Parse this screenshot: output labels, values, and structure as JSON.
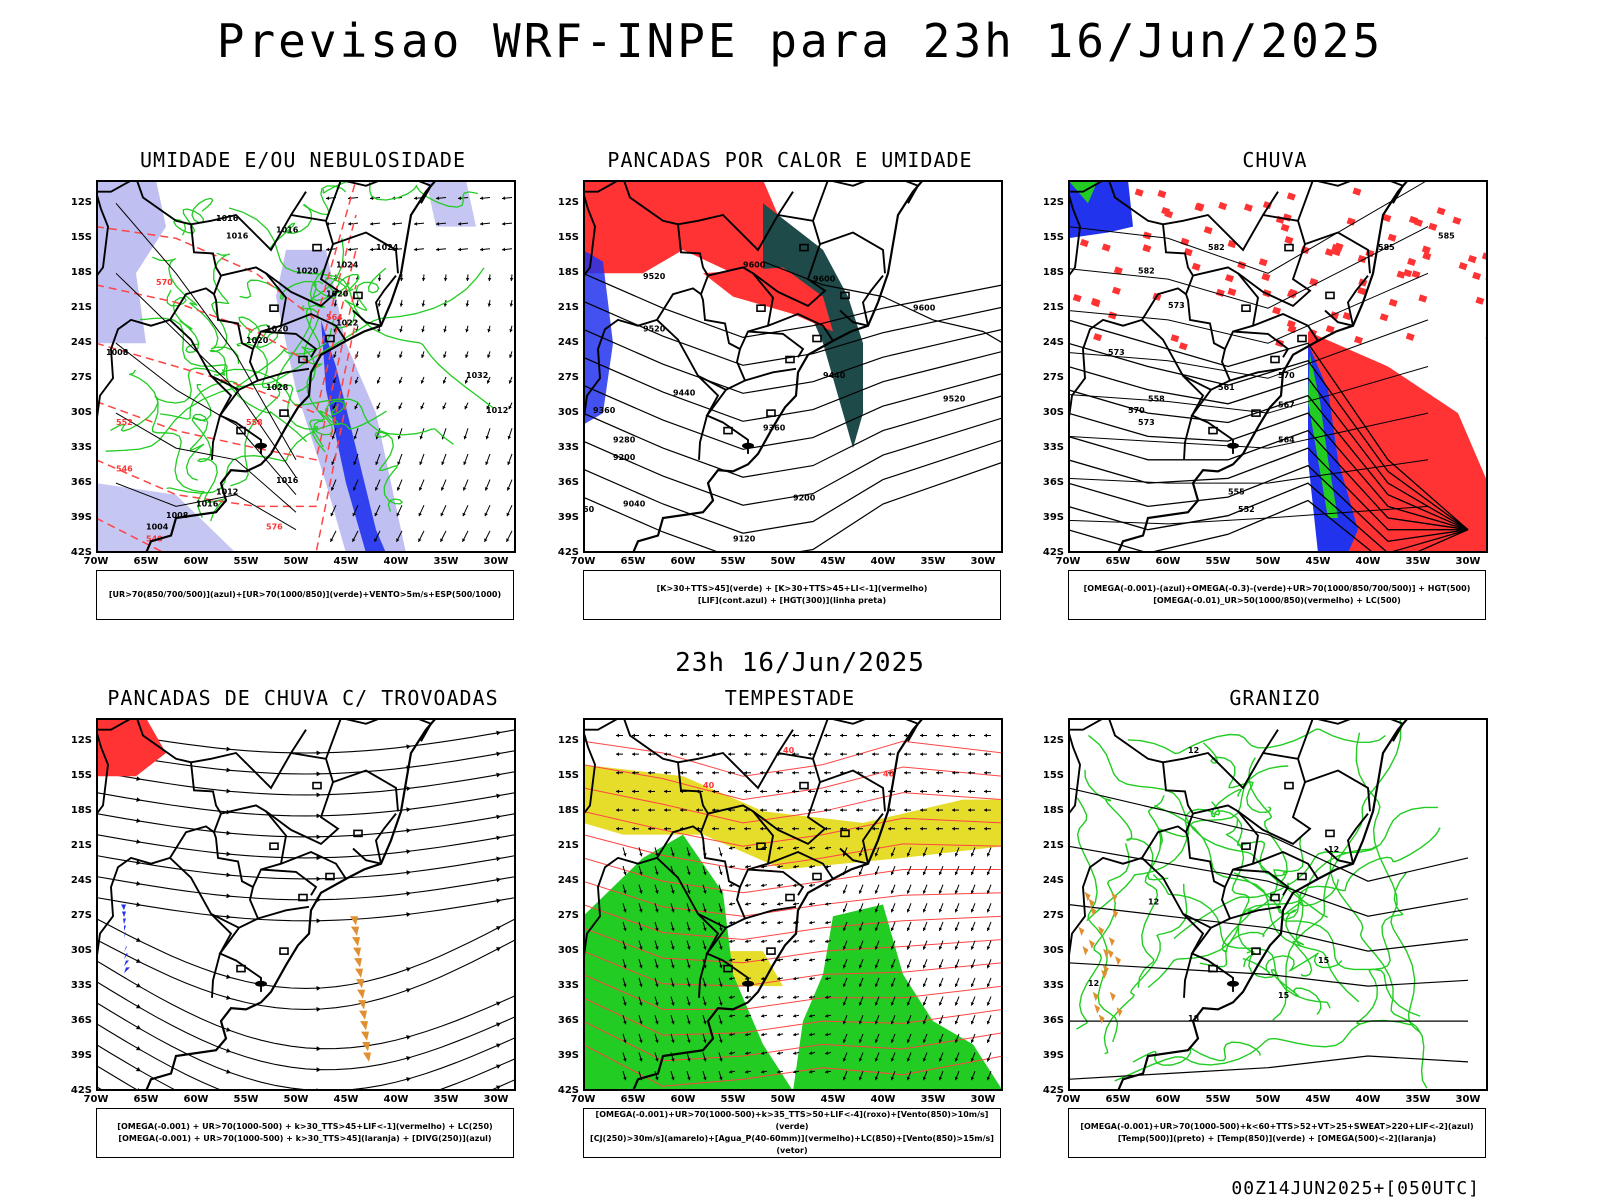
{
  "title": "Previsao WRF-INPE  para 23h 16/Jun/2025",
  "mid_time": "23h 16/Jun/2025",
  "footer": "00Z14JUN2025+[050UTC]",
  "axis": {
    "lat": [
      "12S",
      "15S",
      "18S",
      "21S",
      "24S",
      "27S",
      "30S",
      "33S",
      "36S",
      "39S",
      "42S"
    ],
    "lon": [
      "70W",
      "65W",
      "60W",
      "55W",
      "50W",
      "45W",
      "40W",
      "35W",
      "30W"
    ]
  },
  "colors": {
    "blue": "#2233ee",
    "lightblue": "#b8b8f0",
    "green": "#22cc22",
    "red": "#ff3333",
    "darkteal": "#1f4a4a",
    "yellow": "#e6dc2a",
    "orange": "#e09030"
  },
  "panels": [
    {
      "title": "UMIDADE E/OU NEBULOSIDADE",
      "legend": [
        "[UR>70(850/700/500)](azul)+[UR>70(1000/850)](verde)+VENTO>5m/s+ESP(500/1000)"
      ],
      "labels": [
        "1016",
        "1016",
        "1016",
        "1020",
        "1024",
        "1020",
        "1024",
        "1022",
        "1020",
        "1028",
        "1032",
        "1012",
        "1008",
        "1012",
        "1016",
        "1016",
        "1008",
        "1004",
        "1020"
      ],
      "red_labels": [
        "570",
        "564",
        "558",
        "552",
        "546",
        "540",
        "576"
      ]
    },
    {
      "title": "PANCADAS POR CALOR E UMIDADE",
      "legend": [
        "[K>30+TTS>45](verde) + [K>30+TTS>45+LI<-1](vermelho)",
        "[LIF](cont.azul) + [HGT(300)](linha preta)"
      ],
      "labels": [
        "9520",
        "9600",
        "9600",
        "9600",
        "9520",
        "9520",
        "9440",
        "9360",
        "9440",
        "9360",
        "9280",
        "9200",
        "9200",
        "9040",
        "9120",
        "60"
      ]
    },
    {
      "title": "CHUVA",
      "legend": [
        "[OMEGA(-0.001)-(azul)+OMEGA(-0.3)-(verde)+UR>70(1000/850/700/500)] + HGT(500)",
        "[OMEGA(-0.01)_UR>50(1000/850)(vermelho) + LC(500)"
      ],
      "labels": [
        "582",
        "585",
        "585",
        "582",
        "573",
        "573",
        "570",
        "567",
        "570",
        "573",
        "564",
        "561",
        "558",
        "555",
        "552"
      ]
    },
    {
      "title": "PANCADAS DE CHUVA C/ TROVOADAS",
      "legend": [
        "[OMEGA(-0.001) + UR>70(1000-500) + k>30_TTS>45+LIF<-1](vermelho) + LC(250)",
        "[OMEGA(-0.001) + UR>70(1000-500) + k>30_TTS>45](laranja) + [DIVG(250)](azul)"
      ],
      "labels": []
    },
    {
      "title": "TEMPESTADE",
      "legend": [
        "[OMEGA(-0.001)+UR>70(1000-500)+k>35_TTS>50+LIF<-4](roxo)+[Vento(850)>10m/s](verde)",
        "[CJ(250)>30m/s](amarelo)+[Agua_P(40-60mm)](vermelho)+LC(850)+[Vento(850)>15m/s](vetor)"
      ],
      "labels": [
        "40",
        "40",
        "40"
      ]
    },
    {
      "title": "GRANIZO",
      "legend": [
        "[OMEGA(-0.001)+UR>70(1000-500)+k<60+TTS>52+VT>25+SWEAT>220+LIF<-2](azul)",
        "[Temp(500)](preto) + [Temp(850)](verde) + [OMEGA(500)<-2](laranja)"
      ],
      "labels": [
        "12",
        "12",
        "15",
        "15",
        "12",
        "18",
        "12"
      ]
    }
  ]
}
